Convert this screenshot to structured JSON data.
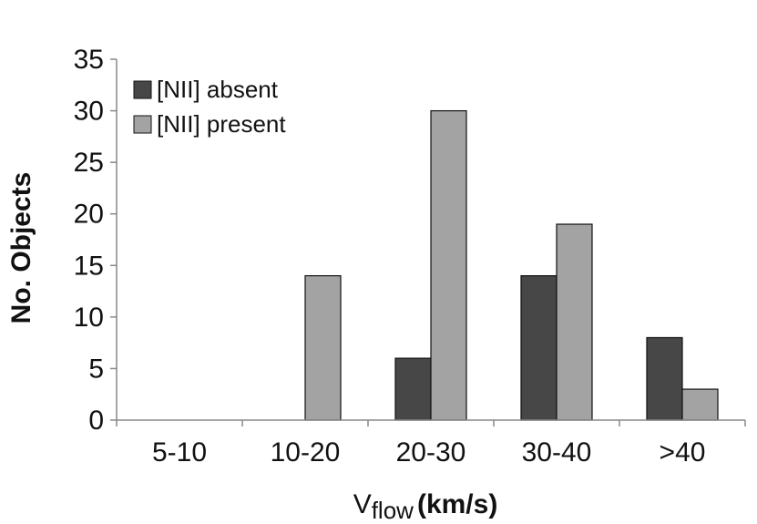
{
  "chart_data": {
    "type": "bar",
    "title": "",
    "categories": [
      "5-10",
      "10-20",
      "20-30",
      "30-40",
      ">40"
    ],
    "series": [
      {
        "name": "[NII] absent",
        "color": "#474747",
        "values": [
          0,
          0,
          6,
          14,
          8
        ]
      },
      {
        "name": "[NII] present",
        "color": "#a3a3a3",
        "values": [
          0,
          14,
          30,
          19,
          3
        ]
      }
    ],
    "xlabel": {
      "main": "V",
      "subscript": "flow",
      "unit": "(km/s)"
    },
    "ylabel": "No.  Objects",
    "ylim": [
      0,
      35
    ],
    "yticks": [
      0,
      5,
      10,
      15,
      20,
      25,
      30,
      35
    ],
    "legend_position": "top-left",
    "grid": false
  }
}
